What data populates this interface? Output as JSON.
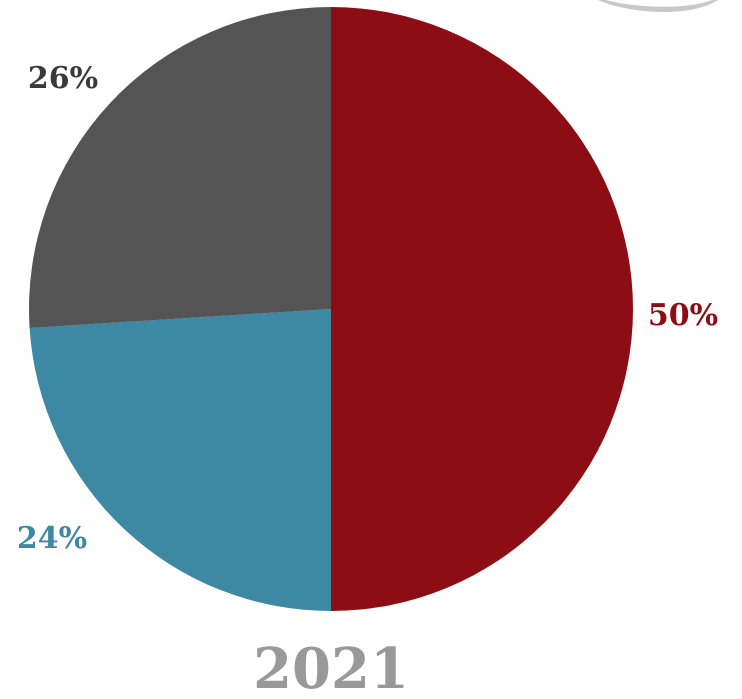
{
  "chart_data": {
    "type": "pie",
    "title": "2021",
    "slices": [
      {
        "label": "50%",
        "value": 50,
        "color": "#8c0e14"
      },
      {
        "label": "24%",
        "value": 24,
        "color": "#3d88a3"
      },
      {
        "label": "26%",
        "value": 26,
        "color": "#545454"
      }
    ],
    "start_angle_deg": 0,
    "direction": "clockwise",
    "title_color": "#999999"
  }
}
